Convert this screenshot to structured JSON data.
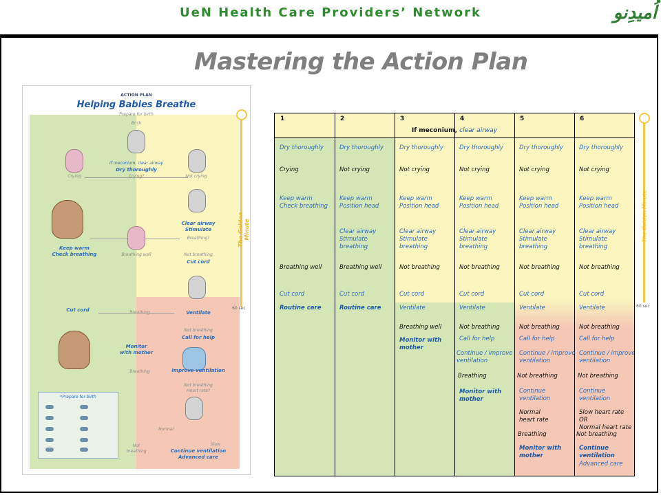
{
  "header": {
    "network": "UeN Health Care Providers’ Network",
    "logo": "اُمیدِنو"
  },
  "slide_title": "Mastering the Action Plan",
  "poster": {
    "subtitle": "ACTION PLAN",
    "title": "Helping Babies Breathe",
    "prepare_for_birth_top": "Prepare for birth",
    "birth": "Birth",
    "meconium": "If meconium, clear airway",
    "dry": "Dry thoroughly",
    "crying_q": "Crying?",
    "crying": "Crying",
    "not_crying": "Not crying",
    "keep_warm": "Keep warm\nCheck breathing",
    "clear_airway": "Clear airway\nStimulate",
    "breathing_q": "Breathing?",
    "breathing_well": "Breathing well",
    "not_breathing": "Not breathing",
    "cut_cord_right": "Cut cord",
    "cut_cord_left": "Cut cord",
    "breathing": "Breathing",
    "ventilate": "Ventilate",
    "monitor": "Monitor\nwith mother",
    "not_breathing2": "Not breathing",
    "call_help": "Call for help",
    "breathing2": "Breathing",
    "improve": "Improve ventilation",
    "not_breathing3": "Not breathing\nHeart rate?",
    "normal": "Normal",
    "slow": "Slow",
    "not_breathing4": "Not\nbreathing",
    "continue": "Continue ventilation\nAdvanced care",
    "golden_minute": "The Golden Minute",
    "sec": "60 sec",
    "prepare_box": "*Prepare for birth"
  },
  "table": {
    "meconium_label": "If meconium,",
    "meconium_value": "clear airway",
    "columns": [
      "1",
      "2",
      "3",
      "4",
      "5",
      "6"
    ],
    "cells": {
      "c1": [
        "Dry thoroughly",
        "Crying",
        "Keep warm",
        "Check breathing",
        "Breathing well",
        "Cut cord",
        "Routine care"
      ],
      "c2": [
        "Dry thoroughly",
        "Not crying",
        "Keep warm",
        "Position head",
        "Clear airway",
        "Stimulate",
        "breathing",
        "Breathing well",
        "Cut cord",
        "Routine care"
      ],
      "c3": [
        "Dry thoroughly",
        "Not crying",
        "Keep warm",
        "Position head",
        "Clear airway",
        "Stimulate",
        "breathing",
        "Not breathing",
        "Cut cord",
        "Ventilate",
        "Breathing well",
        "Monitor with",
        "mother"
      ],
      "c4": [
        "Dry thoroughly",
        "Not crying",
        "Keep warm",
        "Position head",
        "Clear airway",
        "Stimulate",
        "breathing",
        "Not breathing",
        "Cut cord",
        "Ventilate",
        "Not breathing",
        "Call for help",
        "Continue / improve",
        "ventilation",
        "Breathing",
        "Monitor with",
        "mother"
      ],
      "c5": [
        "Dry thoroughly",
        "Not crying",
        "Keep warm",
        "Position head",
        "Clear airway",
        "Stimulate",
        "breathing",
        "Not breathing",
        "Cut cord",
        "Ventilate",
        "Not breathing",
        "Call for help",
        "Continue / improve",
        "ventilation",
        "Not breathing",
        "Continue",
        "ventilation",
        "Normal",
        "heart rate",
        "Breathing",
        "Monitor with",
        "mother"
      ],
      "c6": [
        "Dry thoroughly",
        "Not crying",
        "Keep warm",
        "Position head",
        "Clear airway",
        "Stimulate",
        "breathing",
        "Not breathing",
        "Cut cord",
        "Ventilate",
        "Not breathing",
        "Call for help",
        "Continue / improve",
        "ventilation",
        "Not breathing",
        "Continue",
        "ventilation",
        "Slow heart rate",
        "OR",
        "Normal heart rate",
        "Not breathing",
        "Continue",
        "ventilation",
        "Advanced care"
      ]
    },
    "golden_minute": "The Golden Minute",
    "sec": "60 sec"
  }
}
